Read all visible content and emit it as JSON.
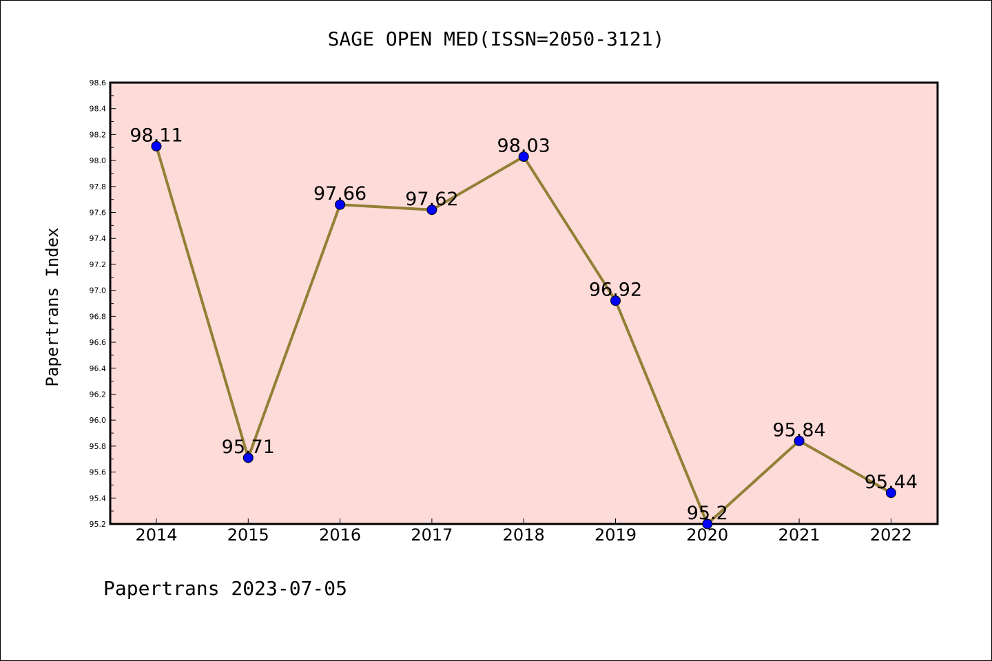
{
  "chart_data": {
    "type": "line",
    "title": "SAGE OPEN MED(ISSN=2050-3121)",
    "ylabel": "Papertrans Index",
    "footer": "Papertrans 2023-07-05",
    "categories": [
      "2014",
      "2015",
      "2016",
      "2017",
      "2018",
      "2019",
      "2020",
      "2021",
      "2022"
    ],
    "values": [
      98.11,
      95.71,
      97.66,
      97.62,
      98.03,
      96.92,
      95.2,
      95.84,
      95.44
    ],
    "data_labels": [
      "98.11",
      "95.71",
      "97.66",
      "97.62",
      "98.03",
      "96.92",
      "95.2",
      "95.84",
      "95.44"
    ],
    "ylim": [
      95.2,
      98.6
    ],
    "yticks": [
      "95.2",
      "95.4",
      "95.6",
      "95.8",
      "96.0",
      "96.2",
      "96.4",
      "96.6",
      "96.8",
      "97.0",
      "97.2",
      "97.4",
      "97.6",
      "97.8",
      "98.0",
      "98.2",
      "98.4",
      "98.6"
    ],
    "grid": false,
    "colors": {
      "plot_background": "#fddbd8",
      "line": "#938037",
      "marker": "#0000ff"
    }
  }
}
